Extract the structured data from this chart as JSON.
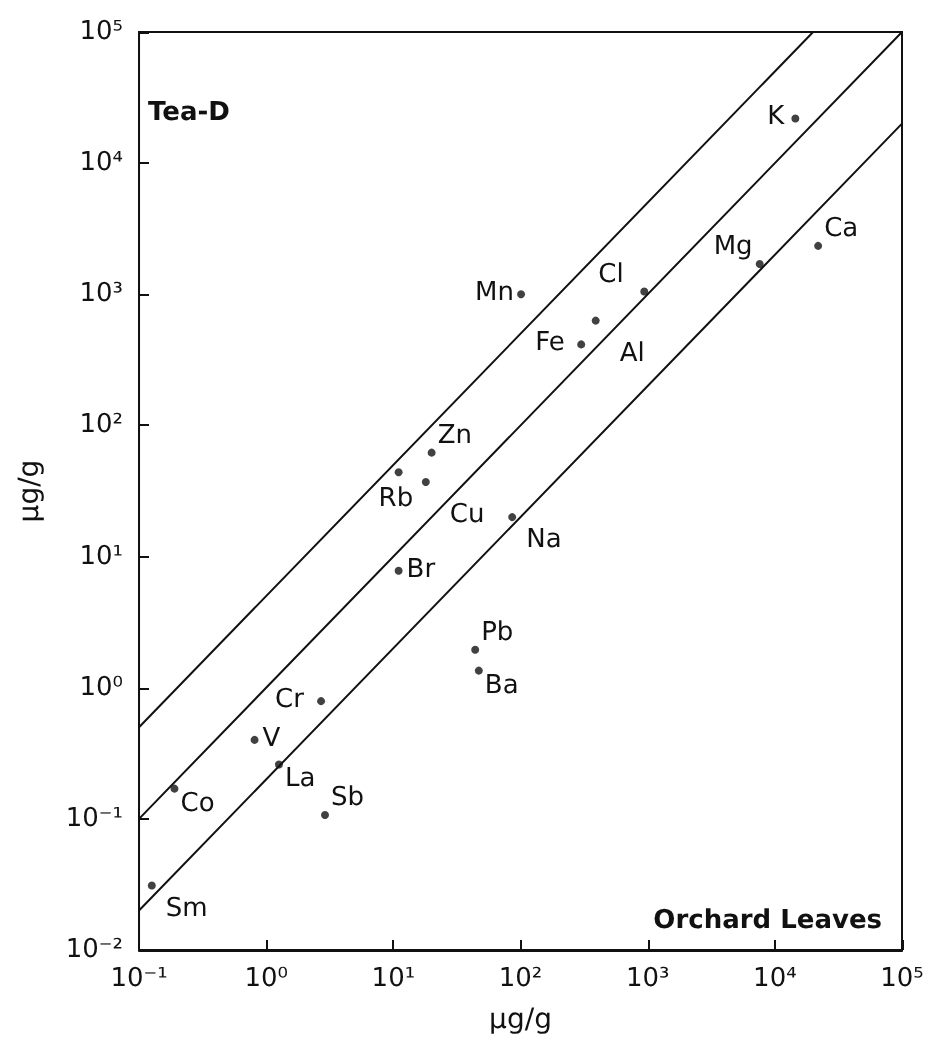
{
  "chart_data": {
    "type": "scatter",
    "xlabel": "µg/g",
    "ylabel": "µg/g",
    "log": "xy",
    "xlim": [
      0.1,
      100000
    ],
    "ylim": [
      0.01,
      100000
    ],
    "xticks": [
      {
        "value": 0.1,
        "label": "10⁻¹"
      },
      {
        "value": 1,
        "label": "10⁰"
      },
      {
        "value": 10,
        "label": "10¹"
      },
      {
        "value": 100,
        "label": "10²"
      },
      {
        "value": 1000,
        "label": "10³"
      },
      {
        "value": 10000,
        "label": "10⁴"
      },
      {
        "value": 100000,
        "label": "10⁵"
      }
    ],
    "yticks": [
      {
        "value": 0.01,
        "label": "10⁻²"
      },
      {
        "value": 0.1,
        "label": "10⁻¹"
      },
      {
        "value": 1,
        "label": "10⁰"
      },
      {
        "value": 10,
        "label": "10¹"
      },
      {
        "value": 100,
        "label": "10²"
      },
      {
        "value": 1000,
        "label": "10³"
      },
      {
        "value": 10000,
        "label": "10⁴"
      },
      {
        "value": 100000,
        "label": "10⁵"
      }
    ],
    "series": [
      {
        "type": "line",
        "color": "#111111",
        "line_style": "solid",
        "marker": "none",
        "x": [
          0.1,
          20000
        ],
        "values": [
          0.5,
          100000
        ]
      },
      {
        "type": "line",
        "color": "#111111",
        "line_style": "solid",
        "marker": "none",
        "x": [
          0.1,
          100000
        ],
        "values": [
          0.1,
          100000
        ]
      },
      {
        "type": "line",
        "color": "#111111",
        "line_style": "solid",
        "marker": "none",
        "x": [
          0.1,
          100000
        ],
        "values": [
          0.02,
          20000
        ]
      },
      {
        "color": "#111111",
        "marker": "circle",
        "x": [
          14500,
          21900,
          7600,
          101,
          940,
          390,
          300,
          11,
          20,
          18,
          86,
          11,
          44,
          47,
          2.7,
          0.81,
          1.26,
          0.19,
          2.9,
          0.126
        ],
        "values": [
          21900,
          2340,
          1700,
          1000,
          1050,
          630,
          415,
          44,
          62,
          37,
          20,
          7.8,
          1.95,
          1.35,
          0.79,
          0.4,
          0.26,
          0.17,
          0.107,
          0.031
        ]
      }
    ],
    "annotations": [
      "Tea-D",
      "Orchard Leaves",
      {
        "text": "K",
        "x": 14500,
        "y": 21900
      },
      {
        "text": "Ca",
        "x": 21900,
        "y": 2340
      },
      {
        "text": "Mg",
        "x": 7600,
        "y": 1700
      },
      {
        "text": "Mn",
        "x": 101,
        "y": 1000
      },
      {
        "text": "Cl",
        "x": 940,
        "y": 1050
      },
      {
        "text": "Al",
        "x": 390,
        "y": 630
      },
      {
        "text": "Fe",
        "x": 300,
        "y": 415
      },
      {
        "text": "Rb",
        "x": 11,
        "y": 44
      },
      {
        "text": "Zn",
        "x": 20,
        "y": 62
      },
      {
        "text": "Cu",
        "x": 18,
        "y": 37
      },
      {
        "text": "Na",
        "x": 86,
        "y": 20
      },
      {
        "text": "Br",
        "x": 11,
        "y": 7.8
      },
      {
        "text": "Pb",
        "x": 44,
        "y": 1.95
      },
      {
        "text": "Ba",
        "x": 47,
        "y": 1.35
      },
      {
        "text": "Cr",
        "x": 2.7,
        "y": 0.79
      },
      {
        "text": "V",
        "x": 0.81,
        "y": 0.4
      },
      {
        "text": "La",
        "x": 1.26,
        "y": 0.26
      },
      {
        "text": "Co",
        "x": 0.19,
        "y": 0.17
      },
      {
        "text": "Sb",
        "x": 2.9,
        "y": 0.107
      },
      {
        "text": "Sm",
        "x": 0.126,
        "y": 0.031
      }
    ]
  }
}
